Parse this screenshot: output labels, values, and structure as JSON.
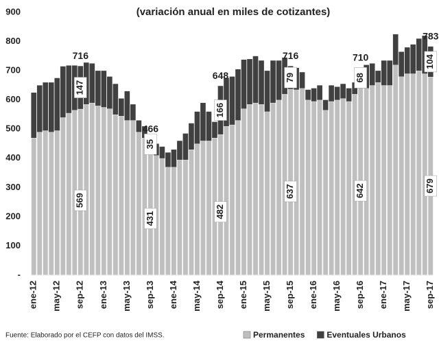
{
  "chart_data": {
    "type": "stacked_bar",
    "title": "(variación anual en miles de cotizantes)",
    "source": "Fuente: Elaborado por el CEFP con datos del IMSS.",
    "categories": [
      "ene-12",
      null,
      null,
      null,
      "may-12",
      null,
      null,
      null,
      "sep-12",
      null,
      null,
      null,
      "ene-13",
      null,
      null,
      null,
      "may-13",
      null,
      null,
      null,
      "sep-13",
      null,
      null,
      null,
      "ene-14",
      null,
      null,
      null,
      "may-14",
      null,
      null,
      null,
      "sep-14",
      null,
      null,
      null,
      "ene-15",
      null,
      null,
      null,
      "may-15",
      null,
      null,
      null,
      "sep-15",
      null,
      null,
      null,
      "ene-16",
      null,
      null,
      null,
      "may-16",
      null,
      null,
      null,
      "sep-16",
      null,
      null,
      null,
      "ene-17",
      null,
      null,
      null,
      "may-17",
      null,
      null,
      null,
      "sep-17"
    ],
    "series": [
      {
        "name": "Permanentes",
        "color": "#bfbfbf",
        "values": [
          470,
          490,
          495,
          490,
          495,
          540,
          555,
          565,
          569,
          585,
          590,
          580,
          575,
          570,
          550,
          545,
          530,
          530,
          490,
          470,
          431,
          410,
          400,
          370,
          370,
          395,
          395,
          430,
          450,
          460,
          460,
          470,
          482,
          510,
          515,
          530,
          570,
          585,
          590,
          585,
          560,
          590,
          600,
          620,
          637,
          635,
          640,
          600,
          595,
          600,
          565,
          595,
          600,
          605,
          595,
          620,
          642,
          640,
          650,
          660,
          650,
          650,
          720,
          680,
          690,
          690,
          700,
          690,
          679
        ]
      },
      {
        "name": "Eventuales Urbanos",
        "color": "#404040",
        "values": [
          155,
          160,
          165,
          170,
          180,
          175,
          163,
          153,
          147,
          143,
          135,
          120,
          125,
          110,
          105,
          60,
          100,
          55,
          40,
          40,
          35,
          40,
          40,
          50,
          60,
          65,
          90,
          90,
          110,
          130,
          100,
          55,
          166,
          165,
          165,
          175,
          168,
          155,
          160,
          150,
          140,
          145,
          135,
          125,
          79,
          75,
          55,
          35,
          45,
          50,
          35,
          55,
          45,
          50,
          45,
          40,
          68,
          80,
          75,
          40,
          85,
          85,
          105,
          85,
          90,
          100,
          110,
          130,
          104
        ]
      }
    ],
    "annotations": [
      {
        "category": "sep-12",
        "text": "716"
      },
      {
        "category": "sep-13",
        "text": "466"
      },
      {
        "category": "sep-14",
        "text": "648"
      },
      {
        "category": "sep-15",
        "text": "716"
      },
      {
        "category": "sep-16",
        "text": "710"
      },
      {
        "category": "sep-17",
        "text": "783"
      }
    ],
    "labeled_categories": [
      "sep-12",
      "sep-13",
      "sep-14",
      "sep-15",
      "sep-16",
      "sep-17"
    ],
    "ylim": [
      0,
      900
    ],
    "yticks": [
      {
        "value": 0,
        "label": "-"
      },
      100,
      200,
      300,
      400,
      500,
      600,
      700,
      800,
      900
    ],
    "grid": false,
    "legend": "bottom-right"
  }
}
